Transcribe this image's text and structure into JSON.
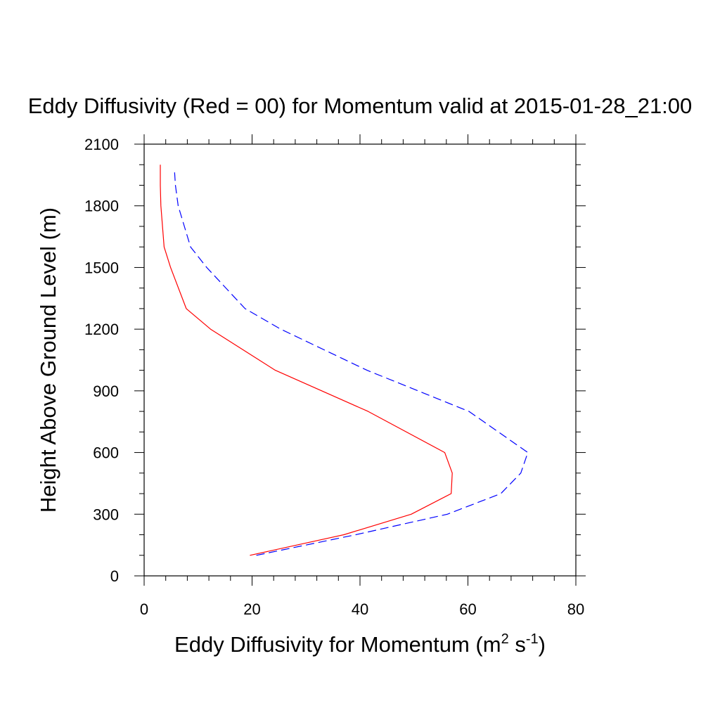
{
  "chart_data": {
    "type": "line",
    "title": "Eddy Diffusivity (Red = 00) for Momentum valid at 2015-01-28_21:00",
    "xlabel": {
      "prefix": "Eddy Diffusivity for Momentum (m",
      "sup1": "2",
      "middle": " s",
      "sup2": "-1",
      "suffix": ")"
    },
    "ylabel": "Height Above Ground Level (m)",
    "xlim": [
      0,
      80
    ],
    "ylim": [
      0,
      2100
    ],
    "xticks": [
      0,
      20,
      40,
      60,
      80
    ],
    "yticks": [
      0,
      300,
      600,
      900,
      1200,
      1500,
      1800,
      2100
    ],
    "x_minor_step": 4,
    "y_minor_step": 100,
    "grid": false,
    "series": [
      {
        "color": "#ff0000",
        "dash": "solid",
        "points": [
          {
            "x": 19.6,
            "y": 100
          },
          {
            "x": 37.0,
            "y": 200
          },
          {
            "x": 49.5,
            "y": 300
          },
          {
            "x": 56.9,
            "y": 400
          },
          {
            "x": 57.1,
            "y": 500
          },
          {
            "x": 55.7,
            "y": 600
          },
          {
            "x": 41.5,
            "y": 800
          },
          {
            "x": 24.3,
            "y": 1000
          },
          {
            "x": 12.3,
            "y": 1200
          },
          {
            "x": 7.8,
            "y": 1300
          },
          {
            "x": 4.9,
            "y": 1500
          },
          {
            "x": 3.7,
            "y": 1600
          },
          {
            "x": 3.1,
            "y": 1800
          },
          {
            "x": 3.0,
            "y": 1900
          },
          {
            "x": 3.0,
            "y": 2000
          }
        ]
      },
      {
        "color": "#0000ff",
        "dash": "dashed",
        "points": [
          {
            "x": 20.8,
            "y": 100
          },
          {
            "x": 39.2,
            "y": 200
          },
          {
            "x": 56.2,
            "y": 300
          },
          {
            "x": 66.1,
            "y": 400
          },
          {
            "x": 69.8,
            "y": 500
          },
          {
            "x": 71.1,
            "y": 600
          },
          {
            "x": 60.2,
            "y": 800
          },
          {
            "x": 41.3,
            "y": 1000
          },
          {
            "x": 25.3,
            "y": 1200
          },
          {
            "x": 18.7,
            "y": 1300
          },
          {
            "x": 11.6,
            "y": 1500
          },
          {
            "x": 8.6,
            "y": 1600
          },
          {
            "x": 6.3,
            "y": 1800
          },
          {
            "x": 5.8,
            "y": 1900
          },
          {
            "x": 5.6,
            "y": 1980
          }
        ]
      }
    ]
  }
}
